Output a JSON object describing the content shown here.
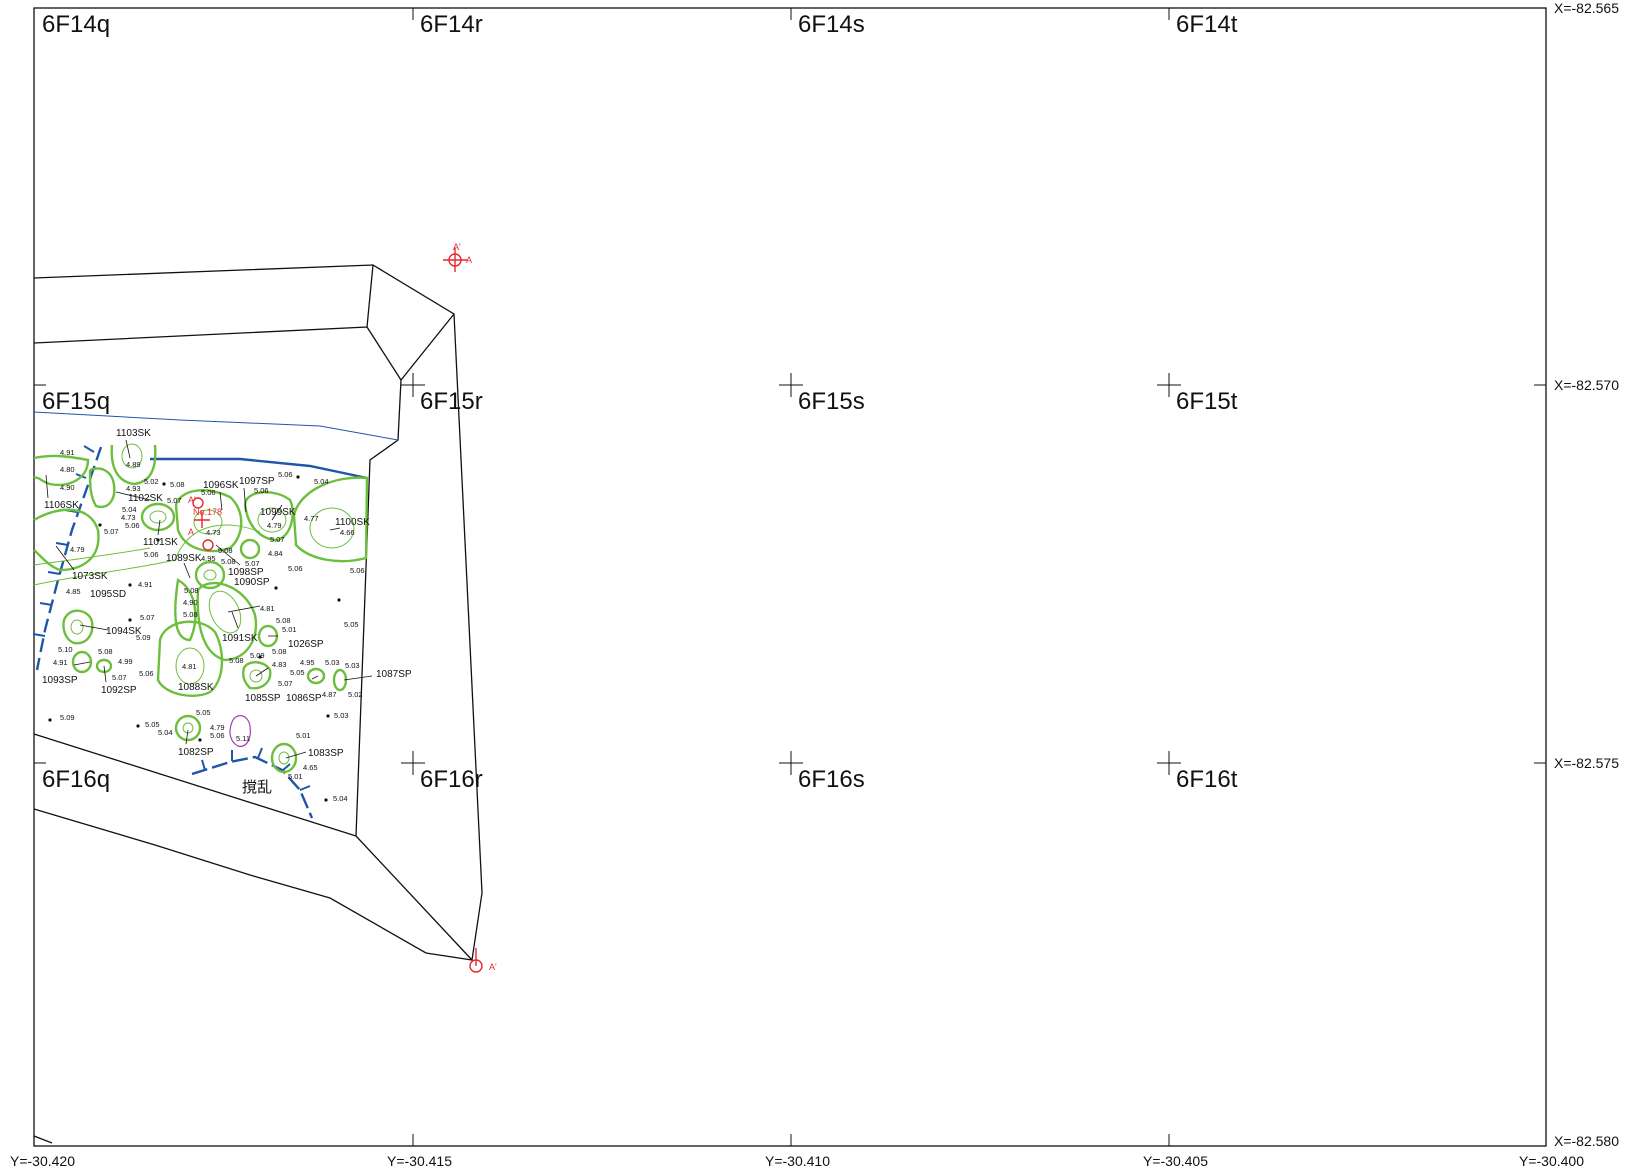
{
  "grid": {
    "cells": [
      {
        "id": "6F14q"
      },
      {
        "id": "6F14r"
      },
      {
        "id": "6F14s"
      },
      {
        "id": "6F14t"
      },
      {
        "id": "6F15q"
      },
      {
        "id": "6F15r"
      },
      {
        "id": "6F15s"
      },
      {
        "id": "6F15t"
      },
      {
        "id": "6F16q"
      },
      {
        "id": "6F16r"
      },
      {
        "id": "6F16s"
      },
      {
        "id": "6F16t"
      }
    ],
    "x_coords": [
      "X=-82.565",
      "X=-82.570",
      "X=-82.575",
      "X=-82.580"
    ],
    "y_coords": [
      "Y=-30.420",
      "Y=-30.415",
      "Y=-30.410",
      "Y=-30.405",
      "Y=-30.400"
    ]
  },
  "features": [
    {
      "id": "1103SK"
    },
    {
      "id": "1102SK"
    },
    {
      "id": "1106SK"
    },
    {
      "id": "1101SK"
    },
    {
      "id": "1096SK"
    },
    {
      "id": "1097SP"
    },
    {
      "id": "1099SK"
    },
    {
      "id": "1100SK"
    },
    {
      "id": "1089SK"
    },
    {
      "id": "1098SP"
    },
    {
      "id": "1090SP"
    },
    {
      "id": "1073SK"
    },
    {
      "id": "1095SD"
    },
    {
      "id": "1094SK"
    },
    {
      "id": "1091SK"
    },
    {
      "id": "1026SP"
    },
    {
      "id": "1093SP"
    },
    {
      "id": "1092SP"
    },
    {
      "id": "1088SK"
    },
    {
      "id": "1085SP"
    },
    {
      "id": "1086SP"
    },
    {
      "id": "1087SP"
    },
    {
      "id": "1082SP"
    },
    {
      "id": "1083SP"
    }
  ],
  "elevations": [
    "4.91",
    "4.80",
    "4.90",
    "4.89",
    "5.02",
    "5.08",
    "4.93",
    "5.07",
    "5.06",
    "5.04",
    "4.73",
    "5.06",
    "5.07",
    "4.79",
    "5.06",
    "4.85",
    "4.91",
    "5.07",
    "5.09",
    "5.10",
    "5.08",
    "4.91",
    "4.99",
    "5.07",
    "5.06",
    "4.81",
    "5.08",
    "4.90",
    "5.08",
    "4.81",
    "5.08",
    "5.01",
    "5.08",
    "5.09",
    "5.08",
    "4.83",
    "5.07",
    "4.95",
    "5.05",
    "5.03",
    "5.03",
    "4.87",
    "5.02",
    "5.05",
    "5.03",
    "5.06",
    "5.06",
    "5.04",
    "4.77",
    "4.66",
    "4.79",
    "5.07",
    "4.84",
    "5.06",
    "5.06",
    "4.73",
    "5.08",
    "4.95",
    "5.07",
    "5.08",
    "5.05",
    "5.04",
    "5.05",
    "4.79",
    "5.06",
    "5.11",
    "5.01",
    "4.65",
    "5.01",
    "5.04",
    "5.09"
  ],
  "section_points": {
    "a": "A",
    "a_prime": "A'",
    "no_label": "No.178"
  },
  "disturbance_label": "撹乱",
  "colors": {
    "pit_outline": "#6cbf3c",
    "boundary_blue": "#1f56a8",
    "section_red": "#e8262c",
    "purple": "#a040b0",
    "line": "#111111"
  }
}
